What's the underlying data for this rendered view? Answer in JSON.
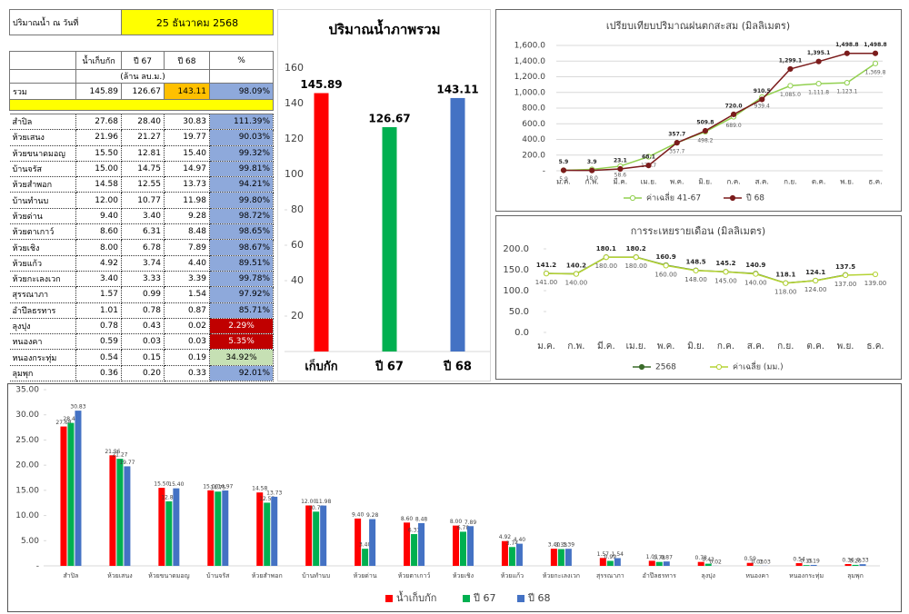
{
  "table": {
    "date_label": "ปริมาณน้ำ ณ วันที่",
    "date": "25 ธันวาคม 2568",
    "columns": [
      "น้ำเก็บกัก",
      "ปี 67",
      "ปี 68",
      "%"
    ],
    "unit": "(ล้าน ลบ.ม.)",
    "total": [
      "รวม",
      "145.89",
      "126.67",
      "143.11",
      "98.09%"
    ],
    "rows": [
      [
        "สำปิล",
        "27.68",
        "28.40",
        "30.83",
        "111.39%"
      ],
      [
        "ห้วยเสนง",
        "21.96",
        "21.27",
        "19.77",
        "90.03%"
      ],
      [
        "ห้วยขนาดมอญ",
        "15.50",
        "12.81",
        "15.40",
        "99.32%"
      ],
      [
        "บ้านจรัส",
        "15.00",
        "14.75",
        "14.97",
        "99.81%"
      ],
      [
        "ห้วยสำพอก",
        "14.58",
        "12.55",
        "13.73",
        "94.21%"
      ],
      [
        "บ้านทำนบ",
        "12.00",
        "10.77",
        "11.98",
        "99.80%"
      ],
      [
        "ห้วยด่าน",
        "9.40",
        "3.40",
        "9.28",
        "98.72%"
      ],
      [
        "ห้วยตาเกาว์",
        "8.60",
        "6.31",
        "8.48",
        "98.65%"
      ],
      [
        "ห้วยเชิง",
        "8.00",
        "6.78",
        "7.89",
        "98.67%"
      ],
      [
        "ห้วยแก้ว",
        "4.92",
        "3.74",
        "4.40",
        "89.51%"
      ],
      [
        "ห้วยกะเลงเวก",
        "3.40",
        "3.33",
        "3.39",
        "99.78%"
      ],
      [
        "สุรรณาภา",
        "1.57",
        "0.99",
        "1.54",
        "97.92%"
      ],
      [
        "อำปึลธรทาร",
        "1.01",
        "0.78",
        "0.87",
        "85.71%"
      ],
      [
        "ลุงปุง",
        "0.78",
        "0.43",
        "0.02",
        "2.29%"
      ],
      [
        "หนองคา",
        "0.59",
        "0.03",
        "0.03",
        "5.35%"
      ],
      [
        "หนองกระทุ่ม",
        "0.54",
        "0.15",
        "0.19",
        "34.92%"
      ],
      [
        "ลุมพุก",
        "0.36",
        "0.20",
        "0.33",
        "92.01%"
      ]
    ]
  },
  "chart_data": [
    {
      "type": "bar",
      "title": "ปริมาณน้ำภาพรวม",
      "categories": [
        "เก็บกัก",
        "ปี 67",
        "ปี 68"
      ],
      "values": [
        145.89,
        126.67,
        143.11
      ],
      "colors": [
        "#ff0000",
        "#00b050",
        "#4472c4"
      ],
      "ylim": [
        0,
        160
      ],
      "yticks": [
        {
          "value": 0,
          "label": "-"
        },
        20,
        40,
        60,
        80,
        100,
        120,
        140,
        160
      ]
    },
    {
      "type": "line",
      "title": "เปรียบเทียบปริมาณฝนตกสะสม (มิลลิเมตร)",
      "categories": [
        "ม.ค.",
        "ก.พ.",
        "มี.ค.",
        "เม.ย.",
        "พ.ค.",
        "มิ.ย.",
        "ก.ค.",
        "ส.ค.",
        "ก.ย.",
        "ต.ค.",
        "พ.ย.",
        "ธ.ค."
      ],
      "series": [
        {
          "name": "ค่าเฉลี่ย 41-67",
          "color": "#92d050",
          "marker": "hollow",
          "values": [
            5.9,
            18.0,
            58.6,
            179.7,
            357.7,
            498.2,
            689.0,
            939.4,
            1085.0,
            1111.8,
            1123.1,
            1369.8
          ],
          "value_labels": [
            "5.9",
            "18.0",
            "58.6",
            "179.7",
            "357.7",
            "498.2",
            "689.0",
            "939.4",
            "1,085.0",
            "1,111.8",
            "1,123.1",
            "1,369.8"
          ]
        },
        {
          "name": "ปี 68",
          "color": "#7b1c1c",
          "marker": "filled",
          "values": [
            5.9,
            3.9,
            23.1,
            68.1,
            357.7,
            509.8,
            720.0,
            910.5,
            1299.1,
            1395.1,
            1498.8,
            1498.8
          ],
          "value_labels": [
            "5.9",
            "3.9",
            "23.1",
            "68.1",
            "357.7",
            "509.8",
            "720.0",
            "910.5",
            "1,299.1",
            "1,395.1",
            "1,498.8",
            "1,498.8"
          ]
        }
      ],
      "ylim": [
        0,
        1600
      ],
      "yticks": [
        {
          "value": 0,
          "label": "-"
        },
        {
          "value": 200,
          "label": "200.0"
        },
        {
          "value": 400,
          "label": "400.0"
        },
        {
          "value": 600,
          "label": "600.0"
        },
        {
          "value": 800,
          "label": "800.0"
        },
        {
          "value": 1000,
          "label": "1,000.0"
        },
        {
          "value": 1200,
          "label": "1,200.0"
        },
        {
          "value": 1400,
          "label": "1,400.0"
        },
        {
          "value": 1600,
          "label": "1,600.0"
        }
      ],
      "grid": true,
      "legend": "bottom"
    },
    {
      "type": "line",
      "title": "การระเหยรายเดือน (มิลลิเมตร)",
      "categories": [
        "ม.ค.",
        "ก.พ.",
        "มี.ค.",
        "เม.ย.",
        "พ.ค.",
        "มิ.ย.",
        "ก.ค.",
        "ส.ค.",
        "ก.ย.",
        "ต.ค.",
        "พ.ย.",
        "ธ.ค."
      ],
      "series": [
        {
          "name": "2568",
          "color": "#3a6b2a",
          "marker": "filled",
          "values": [
            141.2,
            140.2,
            180.1,
            180.2,
            160.9,
            148.5,
            145.2,
            140.9,
            118.1,
            124.1,
            137.5,
            null
          ]
        },
        {
          "name": "ค่าเฉลี่ย (มม.)",
          "color": "#b5d334",
          "marker": "hollow",
          "values": [
            141,
            140,
            180,
            180,
            160,
            148,
            145,
            140,
            118,
            124,
            137,
            139
          ],
          "value_labels": [
            "141.00",
            "140.00",
            "180.00",
            "180.00",
            "160.00",
            "148.00",
            "145.00",
            "140.00",
            "118.00",
            "124.00",
            "137.00",
            "139.00"
          ]
        }
      ],
      "ylim": [
        0,
        200
      ],
      "yticks": [
        {
          "value": 0,
          "label": "0.0"
        },
        {
          "value": 50,
          "label": "50.0"
        },
        {
          "value": 100,
          "label": "100.0"
        },
        {
          "value": 150,
          "label": "150.0"
        },
        {
          "value": 200,
          "label": "200.0"
        }
      ],
      "grid": false,
      "legend": "bottom"
    },
    {
      "type": "bar",
      "categories": [
        "สำปิล",
        "ห้วยเสนง",
        "ห้วยขนาดมอญ",
        "บ้านจรัส",
        "ห้วยสำพอก",
        "บ้านทำนบ",
        "ห้วยด่าน",
        "ห้วยตาเกาว์",
        "ห้วยเชิง",
        "ห้วยแก้ว",
        "ห้วยกะเลงเวก",
        "สุรรณาภา",
        "อำปึลธรทาร",
        "ลุงปุง",
        "หนองคา",
        "หนองกระทุ่ม",
        "ลุมพุก"
      ],
      "series": [
        {
          "name": "น้ำเก็บกัก",
          "color": "#ff0000",
          "values": [
            27.68,
            21.96,
            15.5,
            15.0,
            14.58,
            12.0,
            9.4,
            8.6,
            8.0,
            4.92,
            3.4,
            1.57,
            1.01,
            0.78,
            0.59,
            0.54,
            0.36
          ],
          "value_labels": [
            "27.68",
            "21.96",
            "15.50",
            "15.00",
            "14.58",
            "12.00",
            "9.40",
            "8.60",
            "8.00",
            "4.92",
            "3.40",
            "1.57",
            "1.01",
            "0.78",
            "0.59",
            "0.54",
            "0.36"
          ]
        },
        {
          "name": "ปี 67",
          "color": "#00b050",
          "values": [
            28.4,
            21.27,
            12.81,
            14.75,
            12.55,
            10.77,
            3.4,
            6.31,
            6.78,
            3.74,
            3.33,
            0.99,
            0.78,
            0.43,
            0.03,
            0.15,
            0.2
          ],
          "value_labels": [
            "28.40",
            "21.27",
            "12.81",
            "14.75",
            "12.55",
            "10.77",
            "3.40",
            "6.31",
            "6.78",
            "3.74",
            "3.33",
            "0.99",
            "0.78",
            "0.43",
            "0.03",
            "0.15",
            "0.20"
          ]
        },
        {
          "name": "ปี 68",
          "color": "#4472c4",
          "values": [
            30.83,
            19.77,
            15.4,
            14.97,
            13.73,
            11.98,
            9.28,
            8.48,
            7.89,
            4.4,
            3.39,
            1.54,
            0.87,
            0.02,
            0.03,
            0.19,
            0.33
          ],
          "value_labels": [
            "30.83",
            "19.77",
            "15.40",
            "14.97",
            "13.73",
            "11.98",
            "9.28",
            "8.48",
            "7.89",
            "4.40",
            "3.39",
            "1.54",
            "0.87",
            "0.02",
            "0.03",
            "0.19",
            "0.33"
          ]
        }
      ],
      "ylim": [
        0,
        35
      ],
      "yticks": [
        {
          "value": 0,
          "label": "-"
        },
        {
          "value": 5,
          "label": "5.00"
        },
        {
          "value": 10,
          "label": "10.00"
        },
        {
          "value": 15,
          "label": "15.00"
        },
        {
          "value": 20,
          "label": "20.00"
        },
        {
          "value": 25,
          "label": "25.00"
        },
        {
          "value": 30,
          "label": "30.00"
        },
        {
          "value": 35,
          "label": "35.00"
        }
      ],
      "grid": false,
      "legend": "bottom"
    }
  ]
}
